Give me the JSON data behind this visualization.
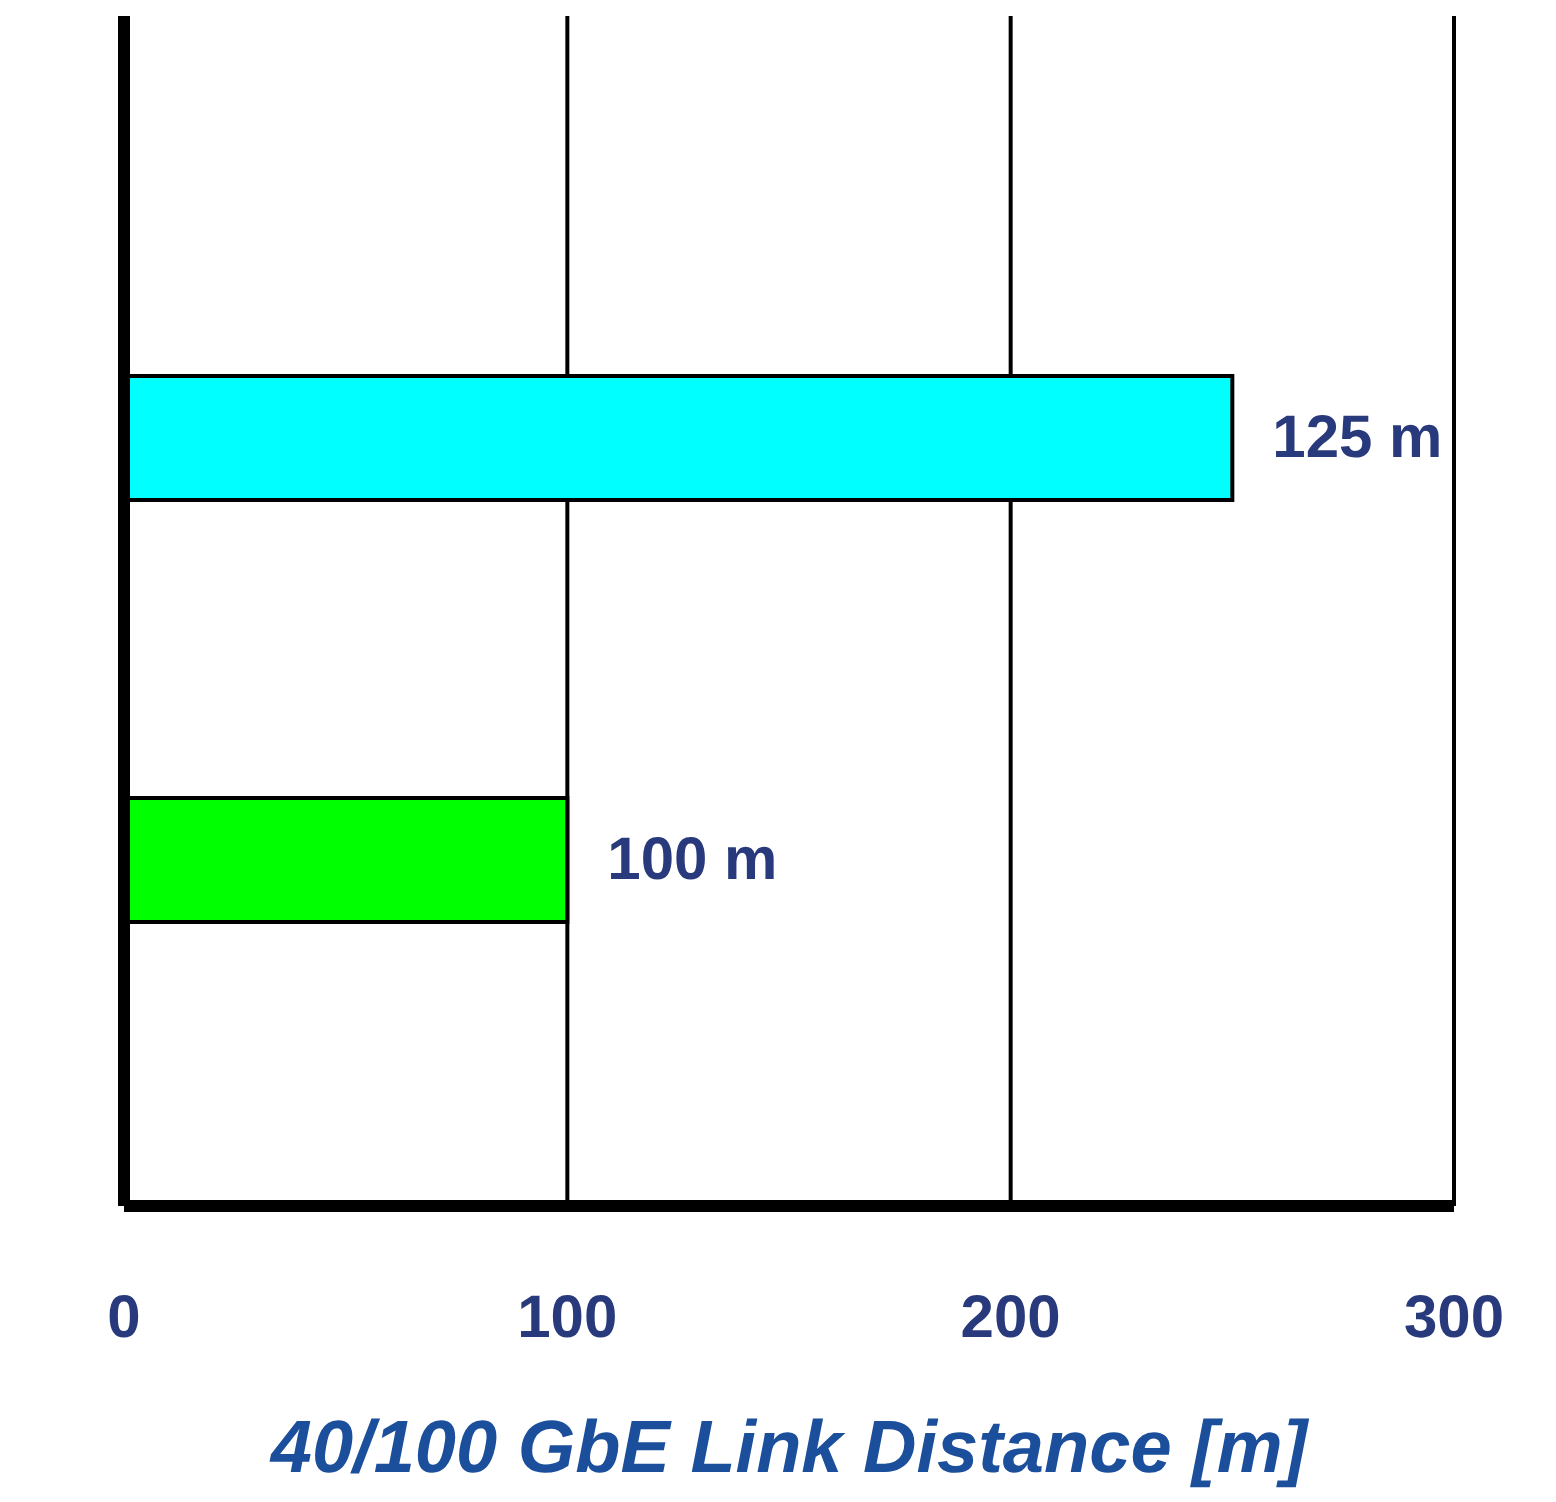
{
  "chart_data": {
    "type": "bar",
    "orientation": "horizontal",
    "xlabel": "40/100 GbE Link Distance [m]",
    "categories": [
      null,
      null
    ],
    "values": [
      250,
      100
    ],
    "colors": [
      "#00ffff",
      "#00ff00"
    ],
    "xlim": [
      0,
      300
    ],
    "xticks": [
      0,
      100,
      200,
      300
    ],
    "grid": "x",
    "annotations": [
      {
        "text": "125 m",
        "x": 250
      },
      {
        "text": "100 m",
        "x": 100
      }
    ]
  }
}
